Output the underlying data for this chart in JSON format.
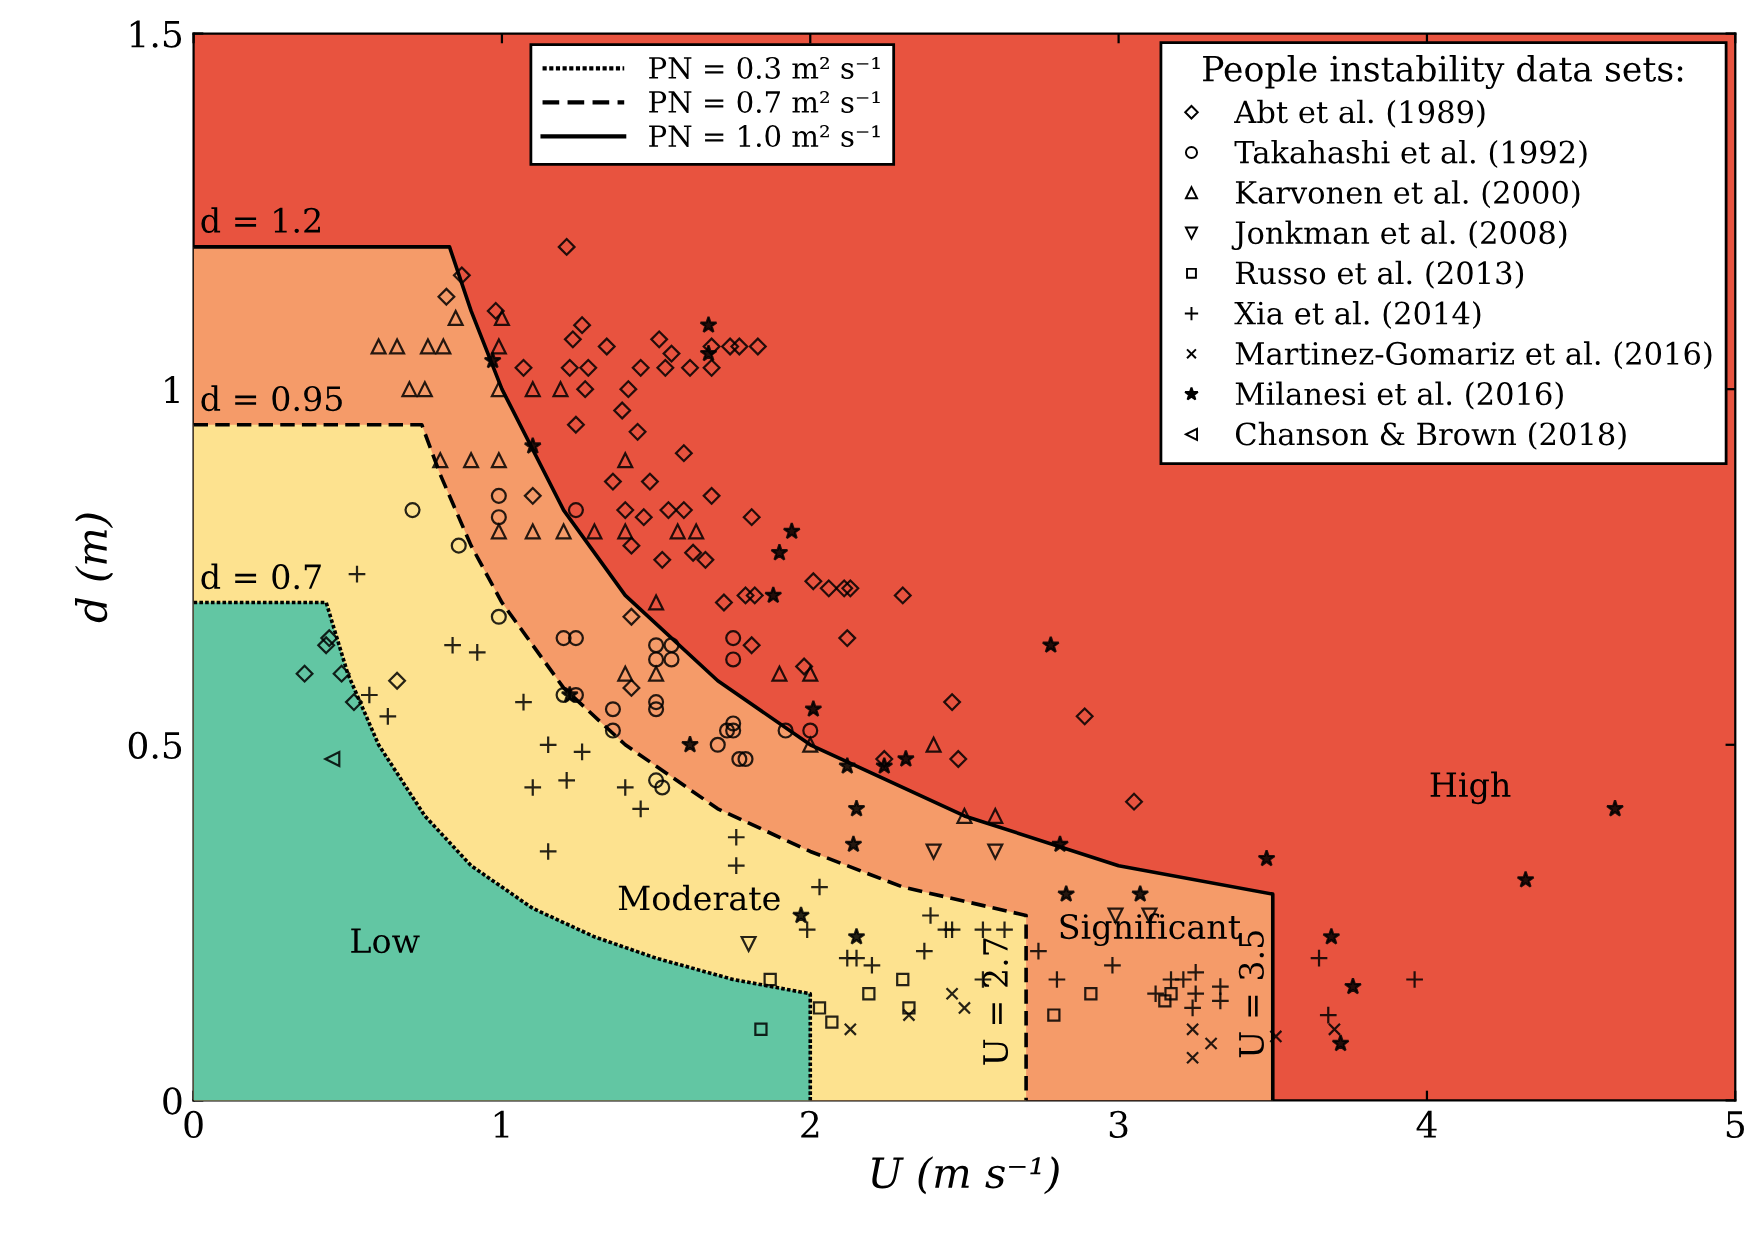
{
  "chart_data": {
    "type": "scatter",
    "xlabel": "U (m s⁻¹)",
    "ylabel": "d (m)",
    "xlim": [
      0,
      5
    ],
    "ylim": [
      0,
      1.5
    ],
    "xticks": [
      0,
      1,
      2,
      3,
      4,
      5
    ],
    "yticks": [
      0,
      0.5,
      1,
      1.5
    ],
    "legend": "top right",
    "legend_title": "People instability data sets:",
    "bands": [
      {
        "axis": "y",
        "from": 0,
        "to": 1.5,
        "color": "#e8533f"
      }
    ],
    "annotations": [
      "d = 1.2",
      "d = 0.95",
      "d = 0.7",
      "Low",
      "Moderate",
      "Significant",
      "High",
      "U = 2.7",
      "U = 3.5"
    ],
    "series": [
      {
        "type": "area",
        "name": "PN = 0.3 m² s⁻¹",
        "color": "#62c6a3",
        "line_style": "dotted",
        "x": [
          0,
          0.43,
          0.5,
          0.6,
          0.75,
          0.9,
          1.1,
          1.3,
          1.5,
          1.75,
          2,
          2
        ],
        "values": [
          0.7,
          0.7,
          0.6,
          0.5,
          0.4,
          0.33,
          0.27,
          0.23,
          0.2,
          0.17,
          0.15,
          0
        ]
      },
      {
        "type": "area",
        "name": "PN = 0.7 m² s⁻¹",
        "color": "#fde28f",
        "line_style": "dashed",
        "x": [
          0,
          0.74,
          0.8,
          0.9,
          1.0,
          1.2,
          1.4,
          1.7,
          2.0,
          2.3,
          2.7,
          2.7
        ],
        "values": [
          0.95,
          0.95,
          0.88,
          0.78,
          0.7,
          0.58,
          0.5,
          0.41,
          0.35,
          0.3,
          0.26,
          0
        ]
      },
      {
        "type": "area",
        "name": "PN = 1.0 m² s⁻¹",
        "color": "#f59b69",
        "line_style": "solid",
        "x": [
          0,
          0.83,
          0.9,
          1.0,
          1.2,
          1.4,
          1.7,
          2.0,
          2.5,
          3.0,
          3.5,
          3.5
        ],
        "values": [
          1.2,
          1.2,
          1.11,
          1.0,
          0.83,
          0.71,
          0.59,
          0.5,
          0.4,
          0.33,
          0.29,
          0
        ]
      },
      {
        "name": "Abt et al. (1989)",
        "marker": "diamond",
        "color": "#000000",
        "x": [
          1.21,
          0.87,
          0.82,
          0.98,
          1.26,
          1.23,
          1.34,
          1.51,
          1.55,
          1.07,
          1.22,
          1.28,
          1.45,
          1.53,
          1.61,
          1.68,
          1.74,
          1.77,
          1.83,
          1.68,
          1.41,
          1.27,
          1.39,
          1.24,
          1.44,
          1.59,
          1.1,
          1.36,
          1.48,
          1.68,
          1.4,
          1.46,
          1.54,
          1.59,
          1.81,
          1.52,
          1.62,
          1.66,
          1.42,
          1.72,
          1.79,
          1.82,
          2.01,
          2.06,
          2.11,
          2.13,
          2.3,
          1.42,
          1.81,
          2.12,
          1.98,
          2.46,
          2.89,
          2.24,
          2.48,
          3.05,
          0.66,
          0.36,
          0.43,
          0.44,
          0.48,
          0.52,
          1.42
        ],
        "values": [
          1.2,
          1.16,
          1.13,
          1.11,
          1.09,
          1.07,
          1.06,
          1.07,
          1.05,
          1.03,
          1.03,
          1.03,
          1.03,
          1.03,
          1.03,
          1.06,
          1.06,
          1.06,
          1.06,
          1.03,
          1.0,
          1.0,
          0.97,
          0.95,
          0.94,
          0.91,
          0.85,
          0.87,
          0.87,
          0.85,
          0.83,
          0.82,
          0.83,
          0.83,
          0.82,
          0.76,
          0.77,
          0.76,
          0.78,
          0.7,
          0.71,
          0.71,
          0.73,
          0.72,
          0.72,
          0.72,
          0.71,
          0.68,
          0.64,
          0.65,
          0.61,
          0.56,
          0.54,
          0.48,
          0.48,
          0.42,
          0.59,
          0.6,
          0.64,
          0.65,
          0.6,
          0.56,
          0.58
        ]
      },
      {
        "name": "Takahashi et al. (1992)",
        "marker": "circle",
        "color": "#000000",
        "x": [
          0.71,
          0.99,
          0.99,
          0.86,
          1.24,
          0.99,
          1.2,
          1.24,
          1.5,
          1.55,
          1.5,
          1.55,
          1.2,
          1.24,
          1.36,
          1.5,
          1.5,
          1.75,
          1.75,
          1.75,
          1.75,
          1.7,
          1.73,
          1.77,
          1.79,
          1.92,
          2.0,
          1.36,
          1.5,
          1.52
        ],
        "values": [
          0.83,
          0.85,
          0.82,
          0.78,
          0.83,
          0.68,
          0.65,
          0.65,
          0.64,
          0.64,
          0.62,
          0.62,
          0.57,
          0.57,
          0.55,
          0.56,
          0.55,
          0.65,
          0.62,
          0.53,
          0.52,
          0.5,
          0.52,
          0.48,
          0.48,
          0.52,
          0.52,
          0.52,
          0.45,
          0.44
        ]
      },
      {
        "name": "Karvonen et al. (2000)",
        "marker": "triangle",
        "color": "#000000",
        "x": [
          0.85,
          1.0,
          0.6,
          0.66,
          0.76,
          0.81,
          0.99,
          0.7,
          0.75,
          0.99,
          1.1,
          1.19,
          0.8,
          0.9,
          0.99,
          1.4,
          0.99,
          1.1,
          1.2,
          1.3,
          1.4,
          1.57,
          1.63,
          1.5,
          1.4,
          1.5,
          1.9,
          2.0,
          2.4,
          2.0,
          2.5,
          2.6
        ],
        "values": [
          1.1,
          1.1,
          1.06,
          1.06,
          1.06,
          1.06,
          1.06,
          1.0,
          1.0,
          1.0,
          1.0,
          1.0,
          0.9,
          0.9,
          0.9,
          0.9,
          0.8,
          0.8,
          0.8,
          0.8,
          0.8,
          0.8,
          0.8,
          0.7,
          0.6,
          0.6,
          0.6,
          0.6,
          0.5,
          0.5,
          0.4,
          0.4
        ]
      },
      {
        "name": "Jonkman et al. (2008)",
        "marker": "triangle-down",
        "color": "#000000",
        "x": [
          2.4,
          2.6,
          1.8,
          2.99,
          3.1
        ],
        "values": [
          0.35,
          0.35,
          0.22,
          0.26,
          0.26
        ]
      },
      {
        "name": "Russo et al. (2013)",
        "marker": "square",
        "color": "#000000",
        "x": [
          1.87,
          1.84,
          2.03,
          2.07,
          2.19,
          2.3,
          2.32,
          2.79,
          2.91,
          3.15,
          3.17
        ],
        "values": [
          0.17,
          0.1,
          0.13,
          0.11,
          0.15,
          0.17,
          0.13,
          0.12,
          0.15,
          0.14,
          0.15
        ]
      },
      {
        "name": "Xia et al. (2014)",
        "marker": "plus",
        "color": "#000000",
        "x": [
          0.53,
          0.84,
          0.92,
          0.57,
          1.07,
          0.63,
          1.15,
          1.26,
          1.1,
          1.21,
          1.4,
          1.45,
          1.15,
          1.76,
          1.76,
          2.03,
          2.39,
          1.99,
          2.44,
          2.46,
          2.56,
          2.63,
          2.12,
          2.15,
          2.2,
          2.37,
          2.56,
          2.74,
          2.8,
          2.98,
          3.12,
          3.17,
          3.21,
          3.25,
          3.25,
          3.24,
          3.33,
          3.33,
          3.65,
          3.96,
          3.68
        ],
        "values": [
          0.74,
          0.64,
          0.63,
          0.57,
          0.56,
          0.54,
          0.5,
          0.49,
          0.44,
          0.45,
          0.44,
          0.41,
          0.35,
          0.37,
          0.33,
          0.3,
          0.26,
          0.24,
          0.24,
          0.24,
          0.24,
          0.24,
          0.2,
          0.2,
          0.19,
          0.21,
          0.17,
          0.21,
          0.17,
          0.19,
          0.15,
          0.17,
          0.17,
          0.18,
          0.15,
          0.13,
          0.16,
          0.14,
          0.2,
          0.17,
          0.12
        ]
      },
      {
        "name": "Martinez-Gomariz et al. (2016)",
        "marker": "cross",
        "color": "#000000",
        "x": [
          2.13,
          2.46,
          2.5,
          2.32,
          3.24,
          3.3,
          3.24,
          3.7,
          3.51
        ],
        "values": [
          0.1,
          0.15,
          0.13,
          0.12,
          0.1,
          0.08,
          0.06,
          0.1,
          0.09
        ]
      },
      {
        "name": "Milanesi et al. (2016)",
        "marker": "star",
        "color": "#000000",
        "x": [
          0.97,
          1.1,
          1.22,
          1.67,
          1.67,
          1.94,
          1.9,
          1.88,
          2.78,
          2.01,
          1.61,
          2.12,
          2.24,
          2.31,
          2.15,
          2.14,
          2.81,
          2.83,
          3.07,
          1.97,
          2.15,
          3.48,
          4.61,
          4.32,
          3.69,
          3.76,
          3.72
        ],
        "values": [
          1.04,
          0.92,
          0.57,
          1.09,
          1.05,
          0.8,
          0.77,
          0.71,
          0.64,
          0.55,
          0.5,
          0.47,
          0.47,
          0.48,
          0.41,
          0.36,
          0.36,
          0.29,
          0.29,
          0.26,
          0.23,
          0.34,
          0.41,
          0.31,
          0.23,
          0.16,
          0.08
        ]
      },
      {
        "name": "Chanson & Brown (2018)",
        "marker": "triangle-left",
        "color": "#000000",
        "x": [
          0.45
        ],
        "values": [
          0.48
        ]
      }
    ]
  }
}
